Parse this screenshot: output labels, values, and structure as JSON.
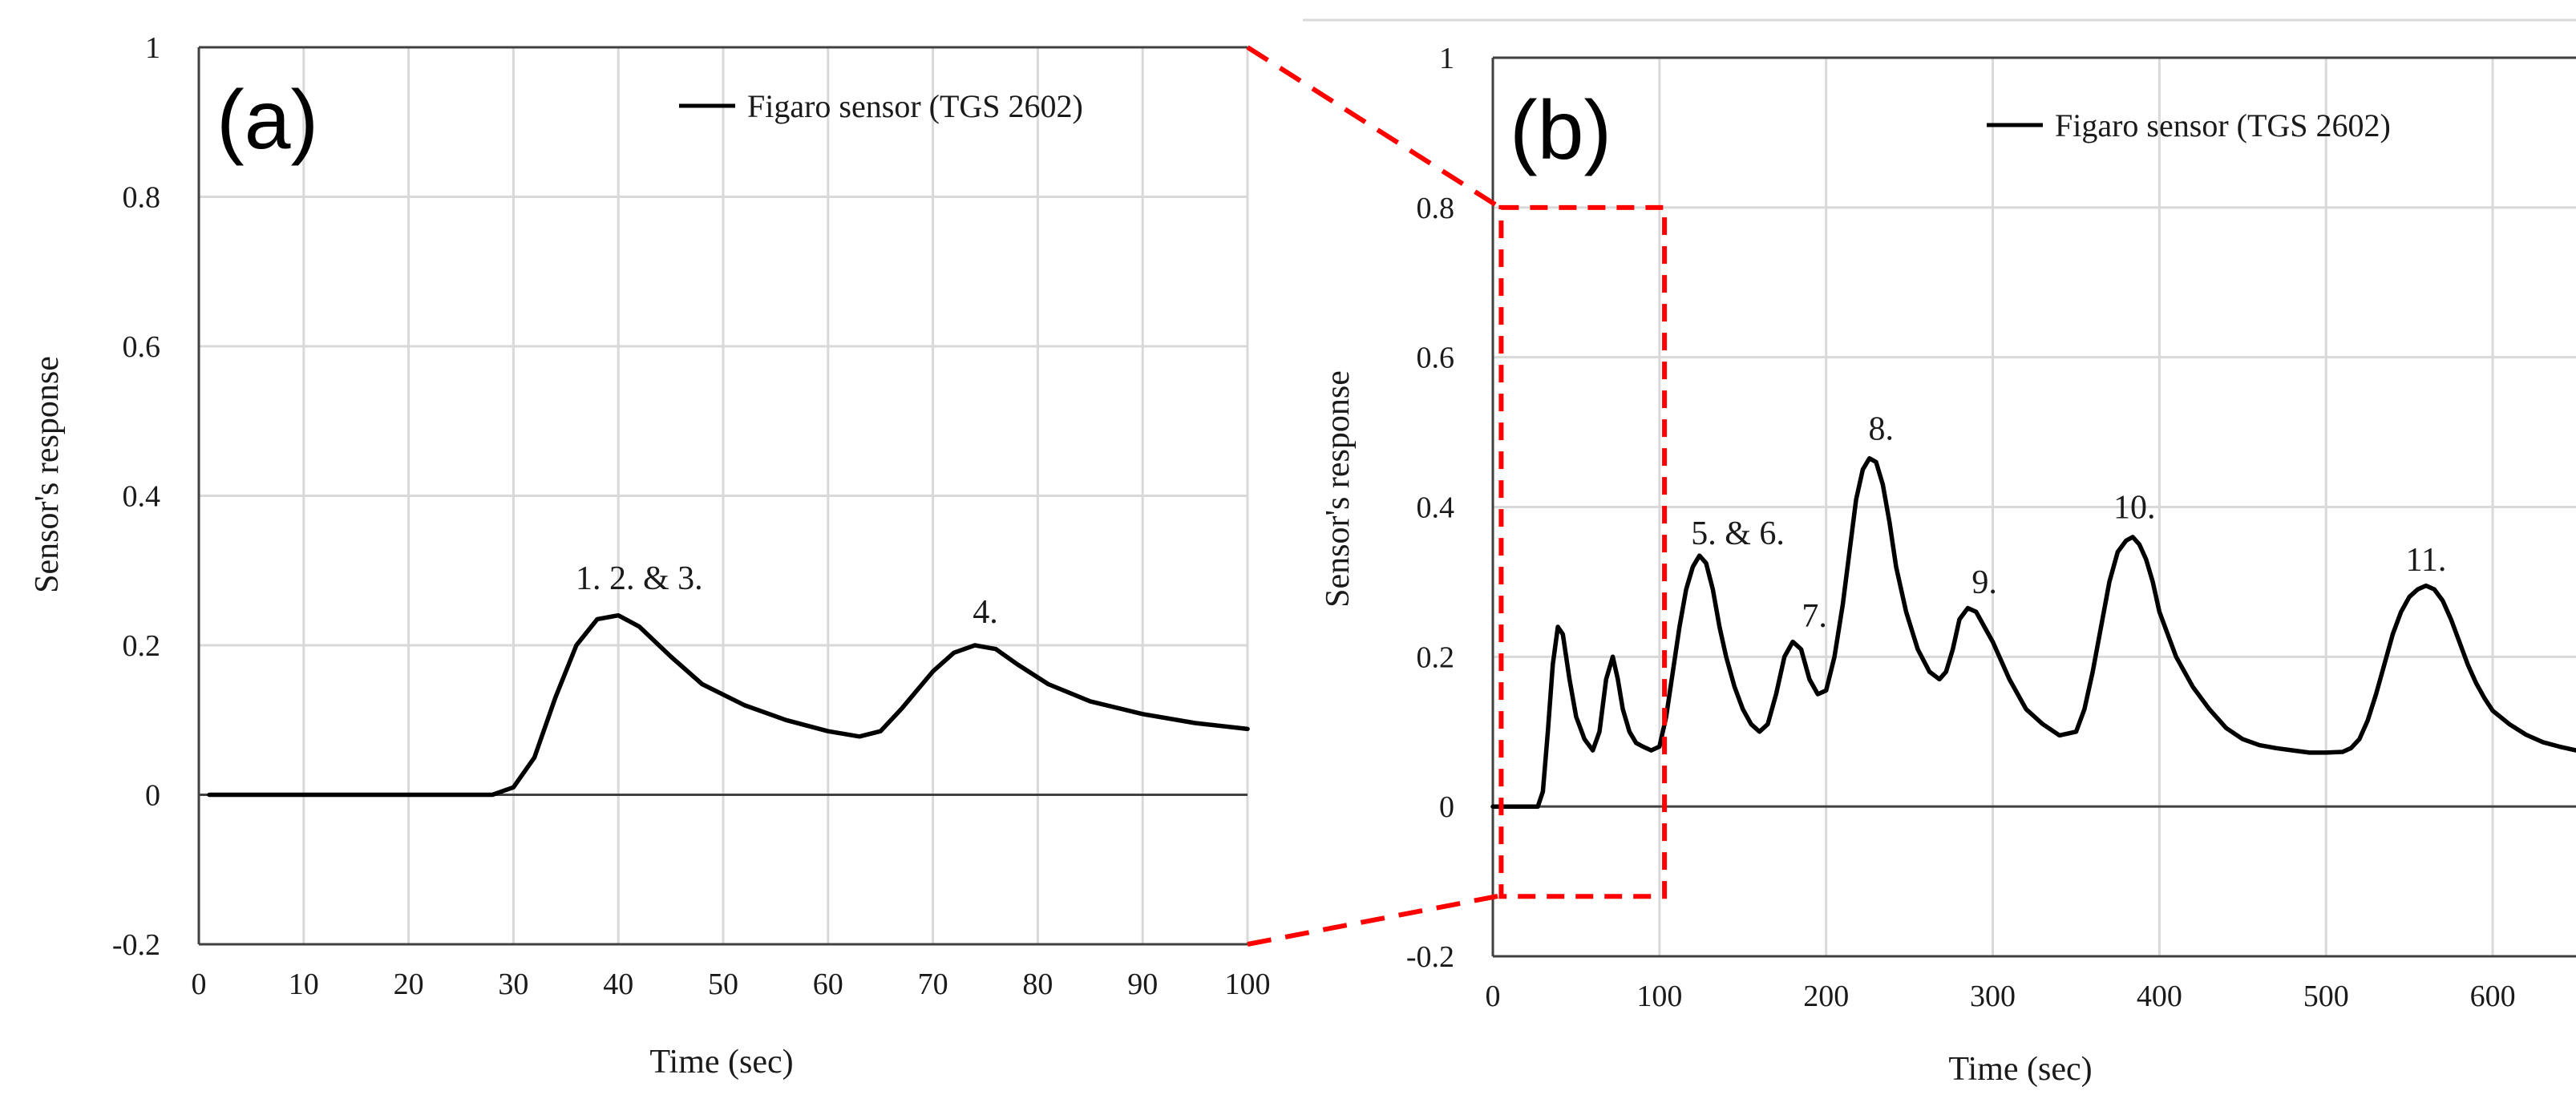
{
  "colors": {
    "line": "#000000",
    "grid": "#d9d9d9",
    "axis": "#404040",
    "highlight": "#ff0000"
  },
  "chart_data": [
    {
      "id": "a",
      "type": "line",
      "panel_label": "(a)",
      "title": "",
      "xlabel": "Time (sec)",
      "ylabel": "Sensor's response",
      "xlim": [
        0,
        100
      ],
      "ylim": [
        -0.2,
        1
      ],
      "xticks": [
        0,
        10,
        20,
        30,
        40,
        50,
        60,
        70,
        80,
        90,
        100
      ],
      "yticks": [
        -0.2,
        0,
        0.2,
        0.4,
        0.6,
        0.8,
        1
      ],
      "ytick_labels": [
        "-0.2",
        "0",
        "0.2",
        "0.4",
        "0.6",
        "0.8",
        "1"
      ],
      "grid": true,
      "legend": {
        "position": "top-right",
        "entries": [
          "Figaro sensor (TGS 2602)"
        ]
      },
      "series": [
        {
          "name": "Figaro sensor (TGS 2602)",
          "x": [
            1,
            10,
            20,
            28,
            30,
            32,
            34,
            36,
            38,
            40,
            42,
            45,
            48,
            52,
            56,
            60,
            63,
            65,
            67,
            70,
            72,
            74,
            76,
            78,
            81,
            85,
            90,
            95,
            100
          ],
          "y": [
            0,
            0,
            0,
            0,
            0.01,
            0.05,
            0.13,
            0.2,
            0.235,
            0.24,
            0.225,
            0.185,
            0.148,
            0.12,
            0.1,
            0.085,
            0.078,
            0.085,
            0.115,
            0.165,
            0.19,
            0.2,
            0.195,
            0.175,
            0.148,
            0.125,
            0.108,
            0.096,
            0.088
          ]
        }
      ],
      "annotations": [
        {
          "text": "1. 2. & 3.",
          "x": 42,
          "y": 0.275
        },
        {
          "text": "4.",
          "x": 75,
          "y": 0.23
        }
      ]
    },
    {
      "id": "b",
      "type": "line",
      "panel_label": "(b)",
      "title": "",
      "xlabel": "Time (sec)",
      "ylabel": "Sensor's response",
      "xlim": [
        0,
        650
      ],
      "ylim": [
        -0.2,
        1
      ],
      "xticks": [
        0,
        100,
        200,
        300,
        400,
        500,
        600
      ],
      "yticks": [
        -0.2,
        0,
        0.2,
        0.4,
        0.6,
        0.8,
        1
      ],
      "ytick_labels": [
        "-0.2",
        "0",
        "0.2",
        "0.4",
        "0.6",
        "0.8",
        "1"
      ],
      "grid": true,
      "legend": {
        "position": "top-right",
        "entries": [
          "Figaro sensor (TGS 2602)"
        ]
      },
      "zoom_box": {
        "x": [
          5,
          103
        ],
        "y": [
          -0.12,
          0.8
        ]
      },
      "series": [
        {
          "name": "Figaro sensor (TGS 2602)",
          "x": [
            0,
            27,
            30,
            33,
            36,
            39,
            42,
            46,
            50,
            55,
            60,
            64,
            68,
            72,
            75,
            78,
            82,
            86,
            90,
            95,
            100,
            104,
            108,
            112,
            116,
            120,
            124,
            128,
            132,
            136,
            140,
            145,
            150,
            155,
            160,
            165,
            170,
            175,
            180,
            185,
            190,
            195,
            200,
            205,
            210,
            214,
            218,
            222,
            226,
            230,
            234,
            238,
            242,
            248,
            255,
            262,
            268,
            272,
            276,
            280,
            285,
            290,
            295,
            300,
            305,
            310,
            320,
            330,
            340,
            350,
            355,
            360,
            365,
            370,
            375,
            380,
            384,
            388,
            392,
            396,
            400,
            405,
            410,
            420,
            430,
            440,
            450,
            460,
            470,
            480,
            490,
            500,
            510,
            515,
            520,
            525,
            530,
            535,
            540,
            545,
            550,
            555,
            560,
            565,
            570,
            575,
            580,
            585,
            590,
            595,
            600,
            610,
            620,
            630,
            640,
            650
          ],
          "y": [
            0,
            0,
            0.02,
            0.1,
            0.19,
            0.24,
            0.23,
            0.17,
            0.12,
            0.09,
            0.075,
            0.1,
            0.17,
            0.2,
            0.17,
            0.13,
            0.1,
            0.085,
            0.08,
            0.075,
            0.08,
            0.12,
            0.18,
            0.24,
            0.29,
            0.32,
            0.335,
            0.325,
            0.29,
            0.24,
            0.2,
            0.16,
            0.13,
            0.11,
            0.1,
            0.11,
            0.15,
            0.2,
            0.22,
            0.21,
            0.17,
            0.15,
            0.155,
            0.2,
            0.27,
            0.34,
            0.41,
            0.45,
            0.465,
            0.46,
            0.43,
            0.38,
            0.32,
            0.26,
            0.21,
            0.18,
            0.17,
            0.18,
            0.21,
            0.25,
            0.265,
            0.26,
            0.24,
            0.22,
            0.195,
            0.17,
            0.13,
            0.11,
            0.095,
            0.1,
            0.13,
            0.18,
            0.24,
            0.3,
            0.34,
            0.355,
            0.36,
            0.35,
            0.33,
            0.3,
            0.26,
            0.23,
            0.2,
            0.16,
            0.13,
            0.105,
            0.09,
            0.082,
            0.078,
            0.075,
            0.072,
            0.072,
            0.073,
            0.078,
            0.09,
            0.115,
            0.15,
            0.19,
            0.23,
            0.26,
            0.28,
            0.29,
            0.295,
            0.29,
            0.275,
            0.25,
            0.22,
            0.19,
            0.165,
            0.145,
            0.128,
            0.11,
            0.096,
            0.086,
            0.08,
            0.075
          ]
        }
      ],
      "annotations": [
        {
          "text": "5. & 6.",
          "x": 147,
          "y": 0.35
        },
        {
          "text": "7.",
          "x": 193,
          "y": 0.24
        },
        {
          "text": "8.",
          "x": 233,
          "y": 0.49
        },
        {
          "text": "9.",
          "x": 295,
          "y": 0.285
        },
        {
          "text": "10.",
          "x": 385,
          "y": 0.385
        },
        {
          "text": "11.",
          "x": 560,
          "y": 0.315
        }
      ]
    }
  ]
}
